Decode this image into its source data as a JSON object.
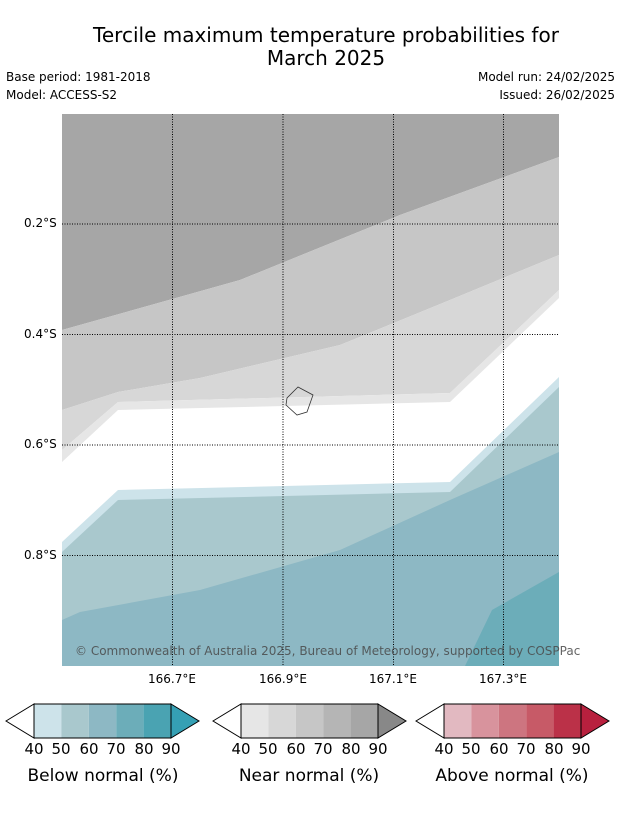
{
  "title": "Tercile maximum temperature probabilities for March 2025",
  "title_line1": "Tercile maximum temperature probabilities for",
  "title_line2": "March 2025",
  "base_period": "Base period: 1981-2018",
  "model": "Model: ACCESS-S2",
  "model_run": "Model run: 24/02/2025",
  "issued": "Issued: 26/02/2025",
  "copyright": "© Commonwealth of Australia 2025, Bureau of Meteorology, supported by COSPPac",
  "axes": {
    "lat_labels": [
      "0.2°S",
      "0.4°S",
      "0.6°S",
      "0.8°S"
    ],
    "lon_labels": [
      "166.7°E",
      "166.9°E",
      "167.1°E",
      "167.3°E"
    ]
  },
  "colorbars": [
    {
      "label": "Below normal (%)",
      "ticks": [
        "40",
        "50",
        "60",
        "70",
        "80",
        "90"
      ],
      "colors": [
        "#ffffff",
        "#cde3ea",
        "#a9c8cd",
        "#8db8c4",
        "#6cadb9",
        "#4aa3b2",
        "#35a0b4"
      ]
    },
    {
      "label": "Near normal (%)",
      "ticks": [
        "40",
        "50",
        "60",
        "70",
        "80",
        "90"
      ],
      "colors": [
        "#ffffff",
        "#e6e6e6",
        "#d7d7d7",
        "#c6c6c6",
        "#b5b5b5",
        "#a6a6a6",
        "#888888"
      ]
    },
    {
      "label": "Above normal (%)",
      "ticks": [
        "40",
        "50",
        "60",
        "70",
        "80",
        "90"
      ],
      "colors": [
        "#ffffff",
        "#e2b9c1",
        "#d8939d",
        "#cd7580",
        "#c75a67",
        "#bb3148",
        "#b8203e"
      ]
    }
  ]
}
